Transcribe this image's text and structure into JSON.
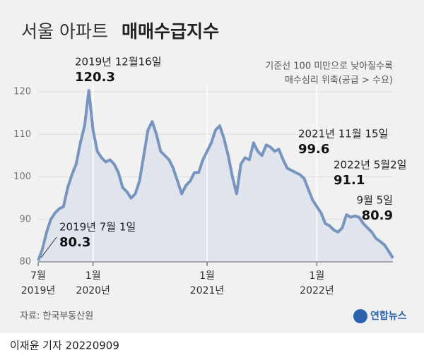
{
  "chart_data": {
    "type": "line",
    "title": "서울 아파트",
    "title_emphasis": "매매수급지수",
    "note": [
      "기준선 100 미만으로 낮아질수록",
      "매수심리 위축(공급 > 수요)"
    ],
    "source": "자료: 한국부동산원",
    "logo": "연합뉴스",
    "byline": "이재윤 기자  20220909",
    "annotations": [
      "2019년 7월 1일",
      "2019년 12월16일",
      "2021년 11월 15일",
      "2022년 5월2일",
      "9월 5일"
    ],
    "categories": [
      "7월",
      null,
      null,
      null,
      null,
      null,
      null,
      null,
      null,
      null,
      null,
      null,
      null,
      "1월",
      null,
      null,
      null,
      null,
      null,
      null,
      null,
      null,
      null,
      null,
      null,
      null,
      null,
      null,
      null,
      null,
      null,
      null,
      null,
      null,
      null,
      null,
      null,
      null,
      null,
      null,
      "1월",
      null,
      null,
      null,
      null,
      null,
      null,
      null,
      null,
      null,
      null,
      null,
      null,
      null,
      null,
      null,
      null,
      null,
      null,
      null,
      null,
      null,
      null,
      null,
      null,
      null,
      "1월",
      null,
      null,
      null,
      null,
      null,
      null,
      null,
      null,
      null,
      null,
      null,
      null,
      null,
      null,
      null,
      null,
      null,
      null
    ],
    "category_years": [
      "2019년",
      null,
      null,
      null,
      null,
      null,
      null,
      null,
      null,
      null,
      null,
      null,
      null,
      "2020년",
      null,
      null,
      null,
      null,
      null,
      null,
      null,
      null,
      null,
      null,
      null,
      null,
      null,
      null,
      null,
      null,
      null,
      null,
      null,
      null,
      null,
      null,
      null,
      null,
      null,
      null,
      "2021년",
      null,
      null,
      null,
      null,
      null,
      null,
      null,
      null,
      null,
      null,
      null,
      null,
      null,
      null,
      null,
      null,
      null,
      null,
      null,
      null,
      null,
      null,
      null,
      null,
      null,
      "2022년",
      null,
      null,
      null,
      null,
      null,
      null,
      null,
      null,
      null,
      null,
      null,
      null,
      null,
      null,
      null,
      null,
      null,
      null
    ],
    "values": [
      80.3,
      83,
      87,
      90,
      91.5,
      92.5,
      93,
      97.5,
      100.5,
      103,
      108,
      112,
      120.3,
      111,
      106,
      104.5,
      103.5,
      104,
      103,
      101,
      97.5,
      96.5,
      95,
      96,
      99,
      105,
      111,
      113,
      110,
      106,
      105,
      104,
      102,
      99,
      96,
      98,
      99,
      101,
      101,
      104,
      106,
      108,
      111,
      112,
      109,
      105,
      100,
      96,
      103,
      104.5,
      104,
      108,
      106,
      105,
      107.5,
      107,
      106,
      106.5,
      104,
      102,
      101.5,
      101,
      100.5,
      99.6,
      97,
      94.5,
      93,
      91.5,
      89,
      88.5,
      87.5,
      87,
      88,
      91.1,
      90.5,
      90.8,
      90.5,
      89,
      88,
      87,
      85.5,
      84.8,
      84,
      82.5,
      80.9
    ],
    "color": "#7895bf",
    "area_color": "#dfe4ed",
    "ylim": [
      80,
      120
    ],
    "yticks": [
      80,
      90,
      100,
      110,
      120
    ],
    "grid": true
  }
}
